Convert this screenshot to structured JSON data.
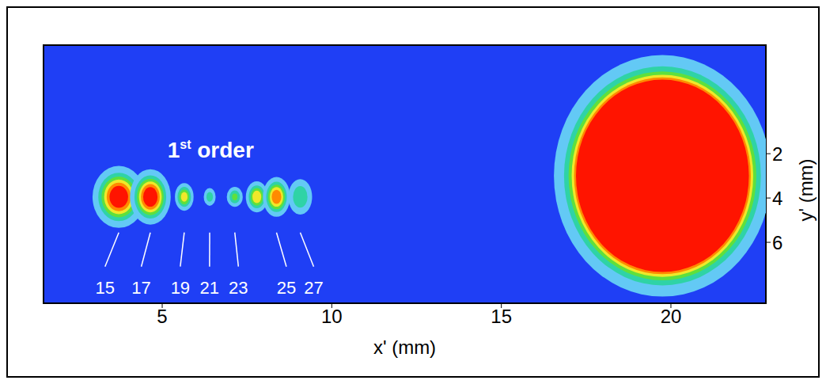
{
  "chart_data": {
    "type": "scatter",
    "xlabel": "x' (mm)",
    "ylabel": "y' (mm)",
    "annotation": "1st order",
    "x": [
      3.72,
      4.65,
      5.65,
      6.4,
      7.14,
      7.79,
      8.37,
      9.07,
      19.75
    ],
    "values": [
      3.95,
      3.95,
      3.95,
      3.95,
      3.95,
      3.95,
      3.95,
      3.95,
      3.0
    ],
    "width": [
      1.55,
      1.2,
      0.55,
      0.35,
      0.47,
      0.65,
      0.8,
      0.7,
      6.4
    ],
    "height": [
      2.8,
      2.5,
      1.25,
      0.8,
      0.9,
      1.4,
      1.8,
      1.6,
      10.9
    ],
    "intensity": [
      1.0,
      1.0,
      0.6,
      0.3,
      0.4,
      0.65,
      0.8,
      0.35,
      30
    ],
    "labels": [
      15,
      17,
      19,
      21,
      23,
      null,
      25,
      27,
      null
    ],
    "xlim": [
      1.5,
      22.8
    ],
    "xticks": [
      5,
      10,
      15,
      20
    ],
    "ylim": [
      -2.9,
      8.75
    ],
    "yticks": [
      2,
      4,
      6
    ]
  }
}
